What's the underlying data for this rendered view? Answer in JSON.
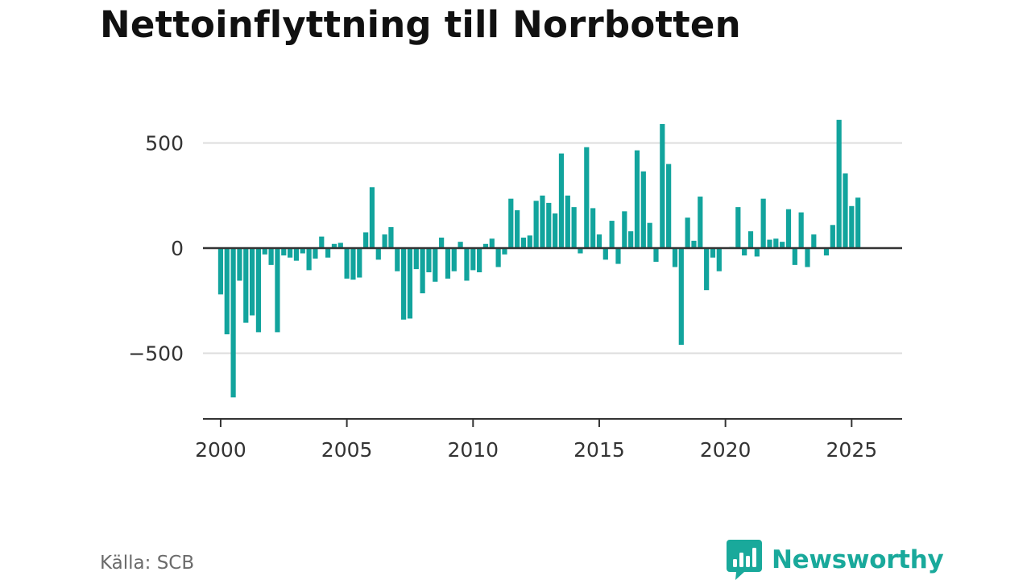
{
  "title": "Nettoinflyttning till Norrbotten",
  "source": "Källa: SCB",
  "brand": {
    "name": "Newsworthy",
    "icon": "newsworthy-logo-icon",
    "color": "#19a99b"
  },
  "colors": {
    "bar": "#12a49d",
    "grid": "#dddddd",
    "zero_line": "#333333",
    "axis": "#333333"
  },
  "chart_data": {
    "type": "bar",
    "title": "Nettoinflyttning till Norrbotten",
    "xlabel": "",
    "ylabel": "",
    "x_period": "quarterly",
    "x_start": "2000-Q1",
    "xlim": [
      1999.3,
      2027.0
    ],
    "ylim": [
      -820,
      620
    ],
    "x_ticks": [
      2000,
      2005,
      2010,
      2015,
      2020,
      2025
    ],
    "x_tick_labels": [
      "2000",
      "2005",
      "2010",
      "2015",
      "2020",
      "2025"
    ],
    "y_ticks": [
      -500,
      0,
      500
    ],
    "y_tick_labels": [
      "−500",
      "0",
      "500"
    ],
    "grid": true,
    "values": [
      -220,
      -410,
      -710,
      -155,
      -355,
      -320,
      -400,
      -30,
      -80,
      -400,
      -35,
      -45,
      -60,
      -25,
      -105,
      -50,
      55,
      -45,
      20,
      25,
      -145,
      -150,
      -140,
      75,
      290,
      -55,
      65,
      100,
      -110,
      -340,
      -335,
      -100,
      -215,
      -115,
      -160,
      50,
      -145,
      -110,
      30,
      -155,
      -105,
      -115,
      20,
      45,
      -90,
      -30,
      235,
      180,
      50,
      60,
      225,
      250,
      215,
      165,
      450,
      250,
      195,
      -25,
      480,
      190,
      65,
      -55,
      130,
      -75,
      175,
      80,
      465,
      365,
      120,
      -65,
      590,
      400,
      -90,
      -460,
      145,
      35,
      245,
      -200,
      -45,
      -110,
      0,
      5,
      195,
      -35,
      80,
      -40,
      235,
      40,
      45,
      30,
      185,
      -80,
      170,
      -90,
      65,
      0,
      -35,
      110,
      610,
      355,
      200,
      240
    ]
  }
}
